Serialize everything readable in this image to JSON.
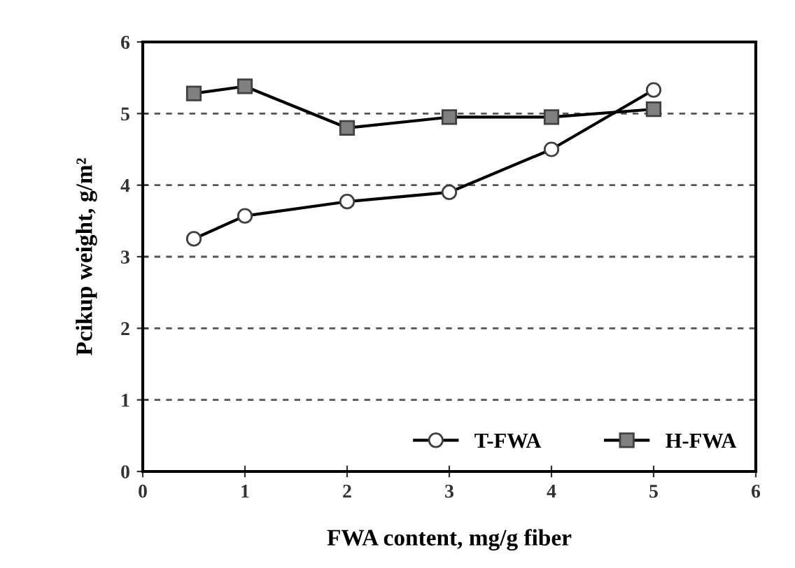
{
  "chart_data": {
    "type": "line",
    "xlabel": "FWA content, mg/g fiber",
    "ylabel": "Pcikup weight, g/m²",
    "x": [
      0.5,
      1,
      2,
      3,
      4,
      5
    ],
    "series": [
      {
        "name": "T-FWA",
        "color": "#ffffff",
        "values": [
          3.25,
          3.57,
          3.77,
          3.9,
          4.5,
          5.33
        ],
        "marker": "circle"
      },
      {
        "name": "H-FWA",
        "color": "#808080",
        "values": [
          5.28,
          5.38,
          4.8,
          4.95,
          4.95,
          5.06
        ],
        "marker": "square"
      }
    ],
    "xlim": [
      0,
      6
    ],
    "xticks": [
      0,
      1,
      2,
      3,
      4,
      5,
      6
    ],
    "ylim": [
      0,
      6
    ],
    "yticks": [
      0,
      1,
      2,
      3,
      4,
      5,
      6
    ],
    "grid": "y",
    "legend": "bottom right",
    "line_style": "solid"
  }
}
